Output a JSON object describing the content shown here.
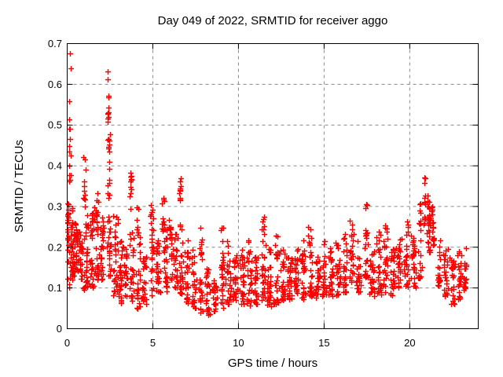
{
  "chart_data": {
    "type": "scatter",
    "title": "Day 049 of 2022, SRMTID for receiver aggo",
    "xlabel": "GPS time / hours",
    "ylabel": "SRMTID / TECUs",
    "xlim": [
      0,
      24
    ],
    "ylim": [
      0,
      0.7
    ],
    "xticks": [
      0,
      5,
      10,
      15,
      20
    ],
    "yticks": [
      0,
      0.1,
      0.2,
      0.3,
      0.4,
      0.5,
      0.6,
      0.7
    ],
    "grid": {
      "show": true,
      "color": "#878787",
      "style": "dashed"
    },
    "border_color": "#000000",
    "background_color": "#ffffff",
    "legend": {
      "show": false
    },
    "marker": {
      "shape": "plus",
      "color": "#ff0000",
      "size": 7
    },
    "x_data_range": [
      0.0,
      23.4
    ],
    "y_data_range": [
      0.03,
      0.69
    ],
    "n_points_estimate": 1780,
    "seed": 20220049,
    "clusters_format": [
      "t_center_hours",
      "t_halfwidth_hours",
      "count",
      "value_min_TECUs",
      "value_max_TECUs",
      "low_bias"
    ],
    "clusters": [
      [
        0.05,
        0.08,
        22,
        0.19,
        0.315,
        1.0
      ],
      [
        0.1,
        0.1,
        8,
        0.1,
        0.19,
        1.0
      ],
      [
        0.15,
        0.06,
        16,
        0.35,
        0.685,
        1.15
      ],
      [
        0.3,
        0.18,
        40,
        0.12,
        0.3,
        1.2
      ],
      [
        0.55,
        0.15,
        28,
        0.14,
        0.26,
        1.1
      ],
      [
        0.8,
        0.15,
        22,
        0.12,
        0.24,
        1.1
      ],
      [
        1.0,
        0.08,
        12,
        0.3,
        0.44,
        1.2
      ],
      [
        1.1,
        0.18,
        30,
        0.09,
        0.28,
        1.3
      ],
      [
        1.45,
        0.18,
        32,
        0.1,
        0.3,
        1.3
      ],
      [
        1.75,
        0.15,
        28,
        0.12,
        0.35,
        1.5
      ],
      [
        2.05,
        0.15,
        26,
        0.12,
        0.3,
        1.2
      ],
      [
        2.38,
        0.05,
        11,
        0.5,
        0.645,
        1.0
      ],
      [
        2.42,
        0.07,
        16,
        0.32,
        0.48,
        1.1
      ],
      [
        2.45,
        0.15,
        24,
        0.13,
        0.31,
        1.2
      ],
      [
        2.8,
        0.18,
        30,
        0.08,
        0.3,
        1.4
      ],
      [
        3.1,
        0.15,
        26,
        0.06,
        0.22,
        1.2
      ],
      [
        3.4,
        0.15,
        22,
        0.07,
        0.2,
        1.2
      ],
      [
        3.7,
        0.06,
        12,
        0.29,
        0.385,
        1.0
      ],
      [
        3.75,
        0.18,
        26,
        0.06,
        0.25,
        1.3
      ],
      [
        4.1,
        0.18,
        30,
        0.05,
        0.3,
        1.8
      ],
      [
        4.5,
        0.18,
        26,
        0.06,
        0.18,
        1.2
      ],
      [
        4.95,
        0.12,
        26,
        0.08,
        0.31,
        1.6
      ],
      [
        5.3,
        0.18,
        26,
        0.08,
        0.22,
        1.3
      ],
      [
        5.6,
        0.12,
        14,
        0.24,
        0.33,
        1.1
      ],
      [
        5.75,
        0.18,
        28,
        0.09,
        0.25,
        1.3
      ],
      [
        6.05,
        0.15,
        24,
        0.1,
        0.28,
        1.4
      ],
      [
        6.35,
        0.15,
        20,
        0.1,
        0.24,
        1.2
      ],
      [
        6.6,
        0.05,
        10,
        0.3,
        0.375,
        1.0
      ],
      [
        6.65,
        0.18,
        26,
        0.08,
        0.26,
        1.3
      ],
      [
        7.0,
        0.18,
        26,
        0.06,
        0.22,
        1.3
      ],
      [
        7.4,
        0.18,
        26,
        0.05,
        0.2,
        1.2
      ],
      [
        7.8,
        0.15,
        28,
        0.04,
        0.25,
        1.5
      ],
      [
        8.2,
        0.18,
        26,
        0.03,
        0.15,
        1.2
      ],
      [
        8.6,
        0.18,
        22,
        0.04,
        0.12,
        1.1
      ],
      [
        9.05,
        0.12,
        26,
        0.05,
        0.285,
        1.7
      ],
      [
        9.4,
        0.18,
        26,
        0.06,
        0.24,
        1.5
      ],
      [
        9.8,
        0.18,
        28,
        0.07,
        0.18,
        1.2
      ],
      [
        10.2,
        0.18,
        28,
        0.06,
        0.2,
        1.3
      ],
      [
        10.6,
        0.18,
        28,
        0.05,
        0.22,
        1.4
      ],
      [
        11.0,
        0.18,
        28,
        0.06,
        0.2,
        1.3
      ],
      [
        11.45,
        0.15,
        30,
        0.07,
        0.275,
        1.6
      ],
      [
        11.8,
        0.18,
        28,
        0.05,
        0.22,
        1.4
      ],
      [
        12.2,
        0.18,
        28,
        0.06,
        0.245,
        1.5
      ],
      [
        12.6,
        0.18,
        28,
        0.07,
        0.2,
        1.3
      ],
      [
        13.0,
        0.18,
        28,
        0.07,
        0.18,
        1.2
      ],
      [
        13.4,
        0.18,
        28,
        0.08,
        0.2,
        1.3
      ],
      [
        13.8,
        0.18,
        28,
        0.07,
        0.22,
        1.4
      ],
      [
        14.2,
        0.18,
        28,
        0.08,
        0.25,
        1.5
      ],
      [
        14.6,
        0.18,
        26,
        0.07,
        0.18,
        1.2
      ],
      [
        15.0,
        0.18,
        26,
        0.08,
        0.23,
        1.4
      ],
      [
        15.4,
        0.18,
        26,
        0.08,
        0.2,
        1.3
      ],
      [
        15.8,
        0.18,
        26,
        0.08,
        0.22,
        1.3
      ],
      [
        16.2,
        0.18,
        26,
        0.09,
        0.25,
        1.4
      ],
      [
        16.6,
        0.18,
        26,
        0.1,
        0.27,
        1.5
      ],
      [
        17.0,
        0.18,
        26,
        0.09,
        0.22,
        1.3
      ],
      [
        17.45,
        0.12,
        26,
        0.12,
        0.31,
        1.5
      ],
      [
        17.8,
        0.18,
        26,
        0.08,
        0.2,
        1.2
      ],
      [
        18.2,
        0.18,
        26,
        0.08,
        0.24,
        1.3
      ],
      [
        18.6,
        0.18,
        26,
        0.09,
        0.26,
        1.4
      ],
      [
        19.0,
        0.18,
        26,
        0.08,
        0.2,
        1.2
      ],
      [
        19.4,
        0.18,
        26,
        0.1,
        0.23,
        1.3
      ],
      [
        19.8,
        0.18,
        26,
        0.1,
        0.27,
        1.4
      ],
      [
        20.2,
        0.18,
        26,
        0.1,
        0.25,
        1.3
      ],
      [
        20.6,
        0.12,
        22,
        0.12,
        0.31,
        1.3
      ],
      [
        20.85,
        0.07,
        15,
        0.25,
        0.375,
        1.2
      ],
      [
        21.1,
        0.12,
        30,
        0.18,
        0.33,
        1.1
      ],
      [
        21.35,
        0.08,
        18,
        0.2,
        0.305,
        1.0
      ],
      [
        21.7,
        0.12,
        20,
        0.1,
        0.22,
        1.2
      ],
      [
        22.1,
        0.18,
        24,
        0.08,
        0.2,
        1.2
      ],
      [
        22.5,
        0.18,
        24,
        0.06,
        0.18,
        1.2
      ],
      [
        22.9,
        0.18,
        24,
        0.07,
        0.2,
        1.3
      ],
      [
        23.2,
        0.12,
        18,
        0.09,
        0.21,
        1.2
      ]
    ]
  }
}
